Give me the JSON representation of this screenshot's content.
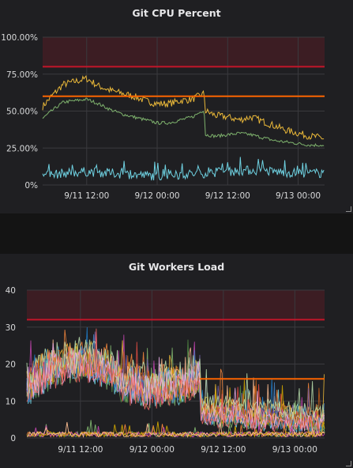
{
  "panels": [
    {
      "title": "Git CPU Percent",
      "chart_data": {
        "type": "line",
        "title": "Git CPU Percent",
        "ylim": [
          0,
          100
        ],
        "y_ticks": [
          "0%",
          "25.00%",
          "50.00%",
          "75.00%",
          "100.00%"
        ],
        "x_ticks": [
          "9/11 12:00",
          "9/12 00:00",
          "9/12 12:00",
          "9/13 00:00"
        ],
        "x_tick_hours": [
          12,
          24,
          36,
          48
        ],
        "x_range_hours": [
          4.5,
          52.5
        ],
        "grid": true,
        "thresholds": [
          {
            "value": 80,
            "color": "#c4162a",
            "fill_above": true
          },
          {
            "value": 60,
            "color": "#fa6400"
          }
        ],
        "series": [
          {
            "color": "#eab839",
            "x": [
              4.5,
              6,
              8,
              10,
              12,
              14,
              16,
              18,
              20,
              22,
              24,
              26,
              28,
              30,
              32,
              32.2,
              34,
              36,
              38,
              40,
              42,
              44,
              46,
              48,
              50,
              52,
              52.5
            ],
            "values": [
              53,
              60,
              68,
              70,
              72,
              67,
              64,
              62,
              60,
              57,
              55,
              55,
              57,
              58,
              62,
              50,
              47,
              46,
              44,
              46,
              43,
              40,
              37,
              35,
              33,
              32,
              31
            ]
          },
          {
            "color": "#7eb26d",
            "x": [
              4.5,
              6,
              8,
              10,
              12,
              14,
              16,
              18,
              20,
              22,
              24,
              26,
              28,
              30,
              32,
              32.2,
              34,
              36,
              38,
              40,
              42,
              44,
              46,
              48,
              50,
              52,
              52.5
            ],
            "values": [
              45,
              50,
              56,
              57,
              58,
              55,
              51,
              48,
              46,
              44,
              42,
              42,
              44,
              46,
              51,
              34,
              33,
              34,
              35,
              34,
              32,
              30,
              29,
              28,
              27,
              27,
              26
            ]
          },
          {
            "color": "#6ed0e0",
            "x": [
              4.5,
              8,
              12,
              16,
              20,
              24,
              28,
              32,
              36,
              40,
              44,
              48,
              52.5
            ],
            "values": [
              6,
              8,
              9,
              8,
              7,
              6,
              7,
              8,
              9,
              10,
              9,
              8,
              8
            ]
          }
        ]
      }
    },
    {
      "title": "Git Workers Load",
      "chart_data": {
        "type": "line",
        "title": "Git Workers Load",
        "ylim": [
          0,
          40
        ],
        "y_ticks": [
          "0",
          "10",
          "20",
          "30",
          "40"
        ],
        "x_ticks": [
          "9/11 12:00",
          "9/12 00:00",
          "9/12 12:00",
          "9/13 00:00"
        ],
        "x_tick_hours": [
          12,
          24,
          36,
          48
        ],
        "x_range_hours": [
          3,
          53
        ],
        "grid": true,
        "thresholds": [
          {
            "value": 32,
            "color": "#c4162a",
            "fill_above": true
          },
          {
            "value": 16,
            "color": "#fa6400",
            "x_from_hours": 32
          }
        ],
        "series_colors": [
          "#7eb26d",
          "#eab839",
          "#6ed0e0",
          "#ef843c",
          "#e24d42",
          "#1f78c1",
          "#ba43a9",
          "#705da0",
          "#508642",
          "#cca300",
          "#447ebc",
          "#c15c17",
          "#f9ba8f",
          "#b7dbab",
          "#e5a8e2",
          "#ea6460"
        ],
        "series_envelope": {
          "x": [
            3,
            5,
            7,
            9,
            11,
            13,
            15,
            17,
            19,
            21,
            23,
            25,
            27,
            29,
            31,
            32,
            32.2,
            34,
            36,
            38,
            40,
            42,
            44,
            46,
            48,
            50,
            52,
            53
          ],
          "values": [
            14,
            17,
            19,
            20,
            21,
            21,
            20,
            19,
            15,
            15,
            14,
            14,
            15,
            15,
            16,
            18,
            8,
            7,
            7,
            7,
            6,
            6,
            6,
            6,
            5,
            5,
            5,
            5
          ]
        },
        "low_series_level": 1
      }
    }
  ]
}
